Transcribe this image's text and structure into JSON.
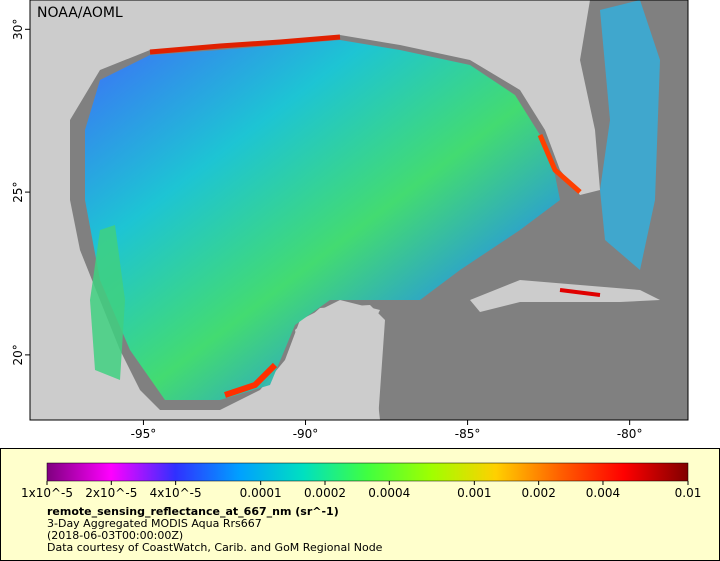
{
  "map_title": "NOAA/AOML",
  "lon_ticks": [
    {
      "value": -95,
      "label": "-95°"
    },
    {
      "value": -90,
      "label": "-90°"
    },
    {
      "value": -85,
      "label": "-85°"
    },
    {
      "value": -80,
      "label": "-80°"
    }
  ],
  "lat_ticks": [
    {
      "value": 30,
      "label": "30°"
    },
    {
      "value": 25,
      "label": "25°"
    },
    {
      "value": 20,
      "label": "20°"
    }
  ],
  "lonlim": [
    -98.5,
    -78.2
  ],
  "latlim": [
    18,
    30.9
  ],
  "colorbar": {
    "log": true,
    "lim": [
      1e-05,
      0.01
    ],
    "colors": [
      "#7f007f",
      "#ff00ff",
      "#3030ff",
      "#00a0ff",
      "#00e0c0",
      "#40ff40",
      "#a0ff00",
      "#ffd000",
      "#ff6000",
      "#ff0000",
      "#800000"
    ],
    "ticks": [
      {
        "value": 1e-05,
        "label": "1x10^-5"
      },
      {
        "value": 2e-05,
        "label": "2x10^-5"
      },
      {
        "value": 4e-05,
        "label": "4x10^-5"
      },
      {
        "value": 0.0001,
        "label": "0.0001"
      },
      {
        "value": 0.0002,
        "label": "0.0002"
      },
      {
        "value": 0.0004,
        "label": "0.0004"
      },
      {
        "value": 0.001,
        "label": "0.001"
      },
      {
        "value": 0.002,
        "label": "0.002"
      },
      {
        "value": 0.004,
        "label": "0.004"
      },
      {
        "value": 0.01,
        "label": "0.01"
      }
    ]
  },
  "legend": {
    "variable": "remote_sensing_reflectance_at_667_nm (sr^-1)",
    "dataset": "3-Day Aggregated MODIS Aqua Rrs667",
    "time": "(2018-06-03T00:00:00Z)",
    "credit": "Data courtesy of CoastWatch, Carib. and GoM Regional Node"
  }
}
